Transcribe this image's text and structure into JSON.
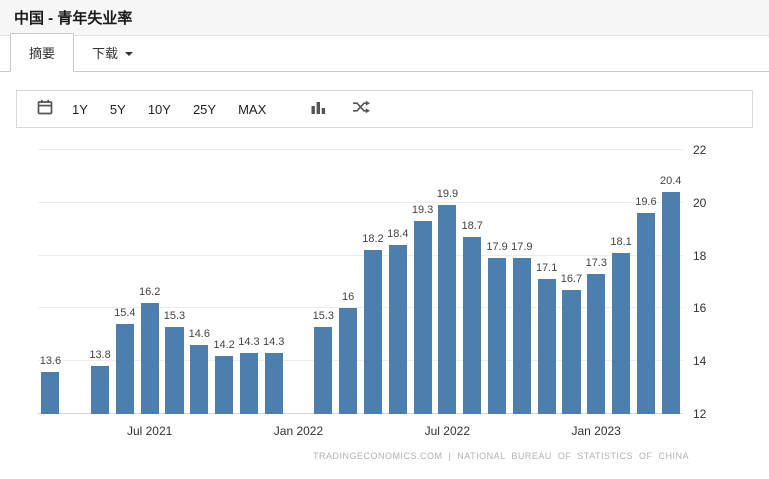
{
  "header": {
    "title": "中国 - 青年失业率"
  },
  "tabs": {
    "summary": "摘要",
    "download": "下载"
  },
  "toolbar": {
    "ranges": [
      "1Y",
      "5Y",
      "10Y",
      "25Y",
      "MAX"
    ]
  },
  "chart_data": {
    "type": "bar",
    "title": "中国 - 青年失业率",
    "bar_color": "#4d7fae",
    "ylim": [
      12,
      22
    ],
    "yticks": [
      12,
      14,
      16,
      18,
      20,
      22
    ],
    "grid": true,
    "legend": "none",
    "y_axis_side": "right",
    "values": [
      13.6,
      null,
      13.8,
      15.4,
      16.2,
      15.3,
      14.6,
      14.2,
      14.3,
      14.3,
      null,
      15.3,
      16,
      18.2,
      18.4,
      19.3,
      19.9,
      18.7,
      17.9,
      17.9,
      17.1,
      16.7,
      17.3,
      18.1,
      19.6,
      20.4
    ],
    "labels": [
      "13.6",
      null,
      "13.8",
      "15.4",
      "16.2",
      "15.3",
      "14.6",
      "14.2",
      "14.3",
      "14.3",
      null,
      "15.3",
      "16",
      "18.2",
      "18.4",
      "19.3",
      "19.9",
      "18.7",
      "17.9",
      "17.9",
      "17.1",
      "16.7",
      "17.3",
      "18.1",
      "19.6",
      "20.4"
    ],
    "x_axis_labels": [
      {
        "label": "Jul 2021",
        "slot": 4
      },
      {
        "label": "Jan 2022",
        "slot": 10
      },
      {
        "label": "Jul 2022",
        "slot": 16
      },
      {
        "label": "Jan 2023",
        "slot": 22
      }
    ],
    "watermark": "TRADINGECONOMICS.COM | NATIONAL BUREAU OF STATISTICS OF CHINA"
  }
}
